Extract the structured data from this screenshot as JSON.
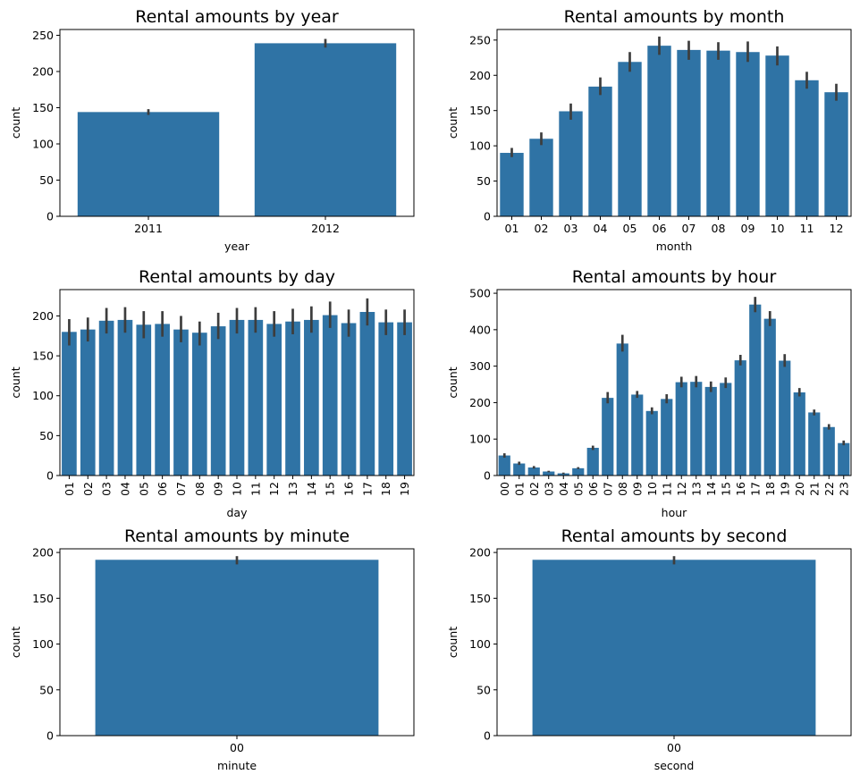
{
  "colors": {
    "bar": "#2f73a5",
    "errorbar": "#3d3d3d",
    "axis": "#000000"
  },
  "chart_data": [
    {
      "type": "bar",
      "title": "Rental amounts by year",
      "xlabel": "year",
      "ylabel": "count",
      "ylim": [
        0,
        258
      ],
      "yticks": [
        0,
        50,
        100,
        150,
        200,
        250
      ],
      "categories": [
        "2011",
        "2012"
      ],
      "values": [
        144,
        239
      ],
      "errors": [
        [
          140,
          148
        ],
        [
          233,
          245
        ]
      ],
      "rotate_xticks": false
    },
    {
      "type": "bar",
      "title": "Rental amounts by month",
      "xlabel": "month",
      "ylabel": "count",
      "ylim": [
        0,
        265
      ],
      "yticks": [
        0,
        50,
        100,
        150,
        200,
        250
      ],
      "categories": [
        "01",
        "02",
        "03",
        "04",
        "05",
        "06",
        "07",
        "08",
        "09",
        "10",
        "11",
        "12"
      ],
      "values": [
        90,
        110,
        149,
        184,
        219,
        242,
        236,
        235,
        233,
        228,
        193,
        176
      ],
      "errors": [
        [
          84,
          97
        ],
        [
          101,
          119
        ],
        [
          137,
          160
        ],
        [
          172,
          197
        ],
        [
          205,
          233
        ],
        [
          229,
          255
        ],
        [
          222,
          249
        ],
        [
          222,
          247
        ],
        [
          219,
          248
        ],
        [
          214,
          241
        ],
        [
          181,
          205
        ],
        [
          164,
          188
        ]
      ],
      "rotate_xticks": false
    },
    {
      "type": "bar",
      "title": "Rental amounts by day",
      "xlabel": "day",
      "ylabel": "count",
      "ylim": [
        0,
        233
      ],
      "yticks": [
        0,
        50,
        100,
        150,
        200
      ],
      "categories": [
        "01",
        "02",
        "03",
        "04",
        "05",
        "06",
        "07",
        "08",
        "09",
        "10",
        "11",
        "12",
        "13",
        "14",
        "15",
        "16",
        "17",
        "18",
        "19"
      ],
      "values": [
        180,
        183,
        194,
        195,
        189,
        190,
        183,
        179,
        187,
        195,
        195,
        190,
        193,
        195,
        201,
        191,
        205,
        192,
        192
      ],
      "errors": [
        [
          163,
          196
        ],
        [
          168,
          198
        ],
        [
          178,
          210
        ],
        [
          179,
          211
        ],
        [
          172,
          206
        ],
        [
          174,
          206
        ],
        [
          167,
          200
        ],
        [
          163,
          193
        ],
        [
          171,
          204
        ],
        [
          178,
          210
        ],
        [
          179,
          211
        ],
        [
          174,
          206
        ],
        [
          177,
          209
        ],
        [
          179,
          212
        ],
        [
          185,
          218
        ],
        [
          174,
          208
        ],
        [
          188,
          222
        ],
        [
          176,
          208
        ],
        [
          176,
          208
        ]
      ],
      "rotate_xticks": true
    },
    {
      "type": "bar",
      "title": "Rental amounts by hour",
      "xlabel": "hour",
      "ylabel": "count",
      "ylim": [
        0,
        510
      ],
      "yticks": [
        0,
        100,
        200,
        300,
        400,
        500
      ],
      "categories": [
        "00",
        "01",
        "02",
        "03",
        "04",
        "05",
        "06",
        "07",
        "08",
        "09",
        "10",
        "11",
        "12",
        "13",
        "14",
        "15",
        "16",
        "17",
        "18",
        "19",
        "20",
        "21",
        "22",
        "23"
      ],
      "values": [
        55,
        33,
        22,
        11,
        6,
        20,
        76,
        213,
        362,
        222,
        177,
        210,
        256,
        257,
        243,
        254,
        316,
        469,
        430,
        315,
        228,
        173,
        133,
        89
      ],
      "errors": [
        [
          49,
          61
        ],
        [
          29,
          38
        ],
        [
          19,
          26
        ],
        [
          9,
          13
        ],
        [
          4,
          8
        ],
        [
          18,
          23
        ],
        [
          70,
          82
        ],
        [
          198,
          229
        ],
        [
          340,
          386
        ],
        [
          213,
          232
        ],
        [
          168,
          187
        ],
        [
          198,
          223
        ],
        [
          242,
          271
        ],
        [
          242,
          273
        ],
        [
          229,
          258
        ],
        [
          240,
          269
        ],
        [
          302,
          331
        ],
        [
          448,
          490
        ],
        [
          410,
          451
        ],
        [
          298,
          333
        ],
        [
          217,
          240
        ],
        [
          165,
          181
        ],
        [
          126,
          141
        ],
        [
          83,
          96
        ]
      ],
      "rotate_xticks": true
    },
    {
      "type": "bar",
      "title": "Rental amounts by minute",
      "xlabel": "minute",
      "ylabel": "count",
      "ylim": [
        0,
        204
      ],
      "yticks": [
        0,
        50,
        100,
        150,
        200
      ],
      "categories": [
        "00"
      ],
      "values": [
        192
      ],
      "errors": [
        [
          187,
          196
        ]
      ],
      "rotate_xticks": false
    },
    {
      "type": "bar",
      "title": "Rental amounts by second",
      "xlabel": "second",
      "ylabel": "count",
      "ylim": [
        0,
        204
      ],
      "yticks": [
        0,
        50,
        100,
        150,
        200
      ],
      "categories": [
        "00"
      ],
      "values": [
        192
      ],
      "errors": [
        [
          187,
          196
        ]
      ],
      "rotate_xticks": false
    }
  ]
}
